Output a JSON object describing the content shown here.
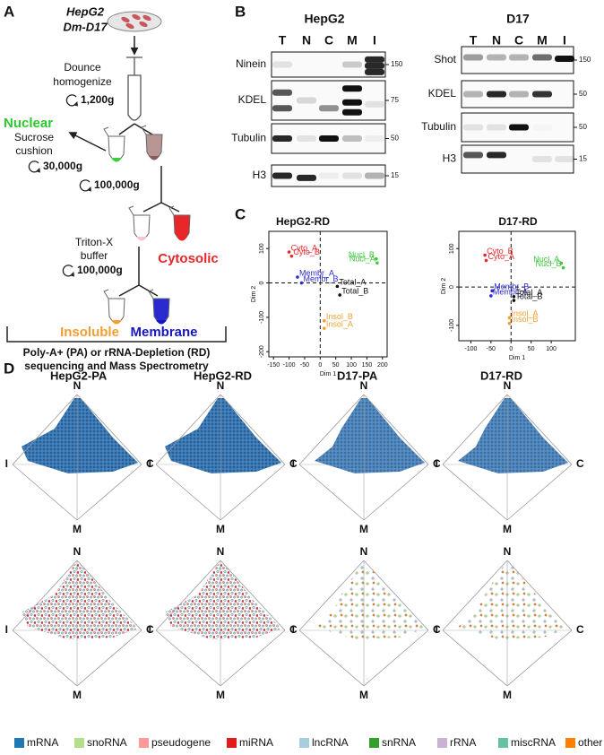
{
  "panel_labels": [
    "A",
    "B",
    "C",
    "D"
  ],
  "panel_a": {
    "cell_lines": [
      "HepG2",
      "Dm-D17"
    ],
    "homogenize": [
      "Dounce",
      "homogenize"
    ],
    "spin_1": "1,200g",
    "nuclear": "Nuclear",
    "cushion": [
      "Sucrose",
      "cushion"
    ],
    "spin_2": "30,000g",
    "spin_3": "100,000g",
    "cytosolic": "Cytosolic",
    "buffer": [
      "Triton-X",
      "buffer"
    ],
    "spin_4": "100,000g",
    "insoluble": "Insoluble",
    "membrane": "Membrane",
    "sequencing": [
      "Poly-A+ (PA) or rRNA-Depletion (RD)",
      "sequencing and Mass Spectrometry"
    ]
  },
  "panel_b": {
    "blots": [
      {
        "title": "HepG2",
        "lanes": [
          "T",
          "N",
          "C",
          "M",
          "I"
        ],
        "rows": [
          {
            "label": "Ninein",
            "marker": 150
          },
          {
            "label": "KDEL",
            "marker": 75
          },
          {
            "label": "Tubulin",
            "marker": 50
          },
          {
            "label": "H3",
            "marker": 15
          }
        ]
      },
      {
        "title": "D17",
        "lanes": [
          "T",
          "N",
          "C",
          "M",
          "I"
        ],
        "rows": [
          {
            "label": "Shot",
            "marker": 150
          },
          {
            "label": "KDEL",
            "marker": 50
          },
          {
            "label": "Tubulin",
            "marker": 50
          },
          {
            "label": "H3",
            "marker": 15
          }
        ]
      }
    ]
  },
  "panel_c": {
    "plots": [
      {
        "title": "HepG2-RD",
        "xlabel": "Dim 1",
        "ylabel": "Dim 2",
        "xlim": [
          -165,
          215
        ],
        "ylim": [
          -215,
          150
        ],
        "xticks": [
          -150,
          -100,
          -50,
          0,
          50,
          100,
          150,
          200
        ],
        "yticks": [
          -200,
          -100,
          0,
          100
        ],
        "points": [
          {
            "label": "Cyto_A",
            "x": -100,
            "y": 90,
            "color": "#e8262a"
          },
          {
            "label": "Cyto_B",
            "x": -92,
            "y": 78,
            "color": "#e8262a"
          },
          {
            "label": "Nucl_B",
            "x": 180,
            "y": 70,
            "color": "#3cc83c"
          },
          {
            "label": "Nucl_A",
            "x": 183,
            "y": 58,
            "color": "#3cc83c"
          },
          {
            "label": "Membr_A",
            "x": -73,
            "y": 17,
            "color": "#2b2bd0"
          },
          {
            "label": "Membr_B",
            "x": -60,
            "y": 0,
            "color": "#2b2bd0"
          },
          {
            "label": "Total_A",
            "x": 55,
            "y": -10,
            "color": "#111111"
          },
          {
            "label": "Total_B",
            "x": 63,
            "y": -35,
            "color": "#111111"
          },
          {
            "label": "Insol_B",
            "x": 13,
            "y": -110,
            "color": "#f0a030"
          },
          {
            "label": "Insol_A",
            "x": 13,
            "y": -132,
            "color": "#f0a030"
          }
        ]
      },
      {
        "title": "D17-RD",
        "xlabel": "Dim 1",
        "ylabel": "Dim 2",
        "xlim": [
          -130,
          160
        ],
        "ylim": [
          -140,
          145
        ],
        "xticks": [
          -100,
          -50,
          0,
          50,
          100
        ],
        "yticks": [
          -100,
          0,
          100
        ],
        "points": [
          {
            "label": "Cyto_B",
            "x": -65,
            "y": 83,
            "color": "#e8262a"
          },
          {
            "label": "Cyto_A",
            "x": -62,
            "y": 69,
            "color": "#e8262a"
          },
          {
            "label": "Nucl_A",
            "x": 125,
            "y": 62,
            "color": "#3cc83c"
          },
          {
            "label": "Nucl_B",
            "x": 130,
            "y": 50,
            "color": "#3cc83c"
          },
          {
            "label": "Membr_B",
            "x": -47,
            "y": -10,
            "color": "#2b2bd0"
          },
          {
            "label": "Membr_A",
            "x": -50,
            "y": -23,
            "color": "#2b2bd0"
          },
          {
            "label": "Total_A",
            "x": 7,
            "y": -25,
            "color": "#111111"
          },
          {
            "label": "Total_B",
            "x": 7,
            "y": -35,
            "color": "#111111"
          },
          {
            "label": "Insol_A",
            "x": -4,
            "y": -80,
            "color": "#f0a030"
          },
          {
            "label": "Insol_B",
            "x": -4,
            "y": -95,
            "color": "#f0a030"
          }
        ]
      }
    ]
  },
  "panel_d": {
    "titles": [
      "HepG2-PA",
      "HepG2-RD",
      "D17-PA",
      "D17-RD"
    ],
    "vertices": {
      "top": "N",
      "left": "I",
      "right": "C",
      "bottom": "M"
    },
    "legend": [
      {
        "name": "mRNA",
        "color": "#1f78b4"
      },
      {
        "name": "snoRNA",
        "color": "#b2df8a"
      },
      {
        "name": "pseudogene",
        "color": "#fb9a99"
      },
      {
        "name": "miRNA",
        "color": "#e31a1c"
      },
      {
        "name": "lncRNA",
        "color": "#a6cee3"
      },
      {
        "name": "snRNA",
        "color": "#33a02c"
      },
      {
        "name": "rRNA",
        "color": "#cab2d6"
      },
      {
        "name": "miscRNA",
        "color": "#66c2a5"
      },
      {
        "name": "other",
        "color": "#ff7f00"
      }
    ]
  }
}
